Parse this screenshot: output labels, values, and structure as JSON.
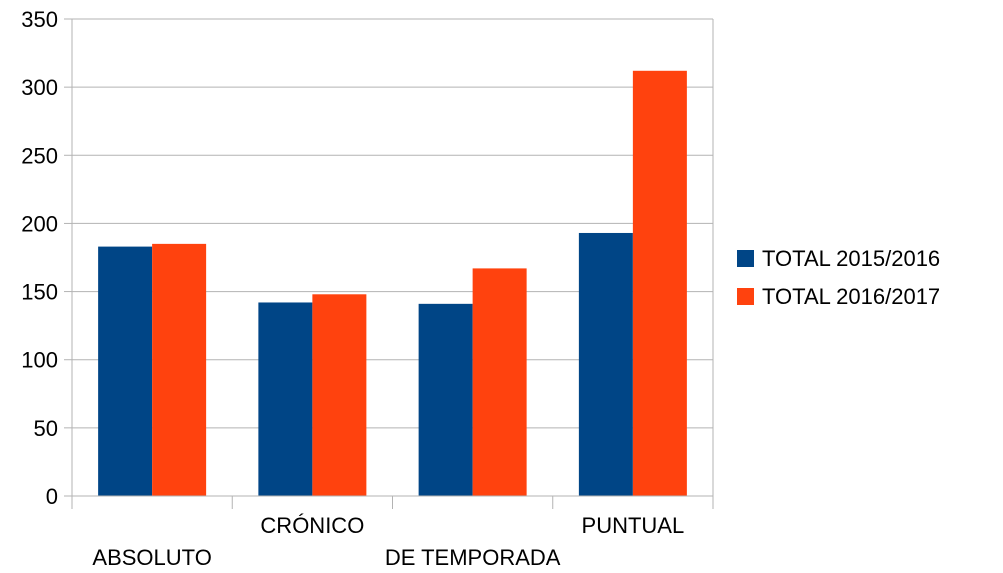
{
  "chart_data": {
    "type": "bar",
    "title": "",
    "xlabel": "",
    "ylabel": "",
    "categories": [
      "ABSOLUTO",
      "CRÓNICO",
      "DE TEMPORADA",
      "PUNTUAL"
    ],
    "series": [
      {
        "name": "TOTAL 2015/2016",
        "color": "#004586",
        "values": [
          183,
          142,
          141,
          193
        ]
      },
      {
        "name": "TOTAL 2016/2017",
        "color": "#ff420e",
        "values": [
          185,
          148,
          167,
          312
        ]
      }
    ],
    "ylim": [
      0,
      350
    ],
    "yticks": [
      0,
      50,
      100,
      150,
      200,
      250,
      300,
      350
    ],
    "grid": true,
    "legend_position": "right"
  }
}
